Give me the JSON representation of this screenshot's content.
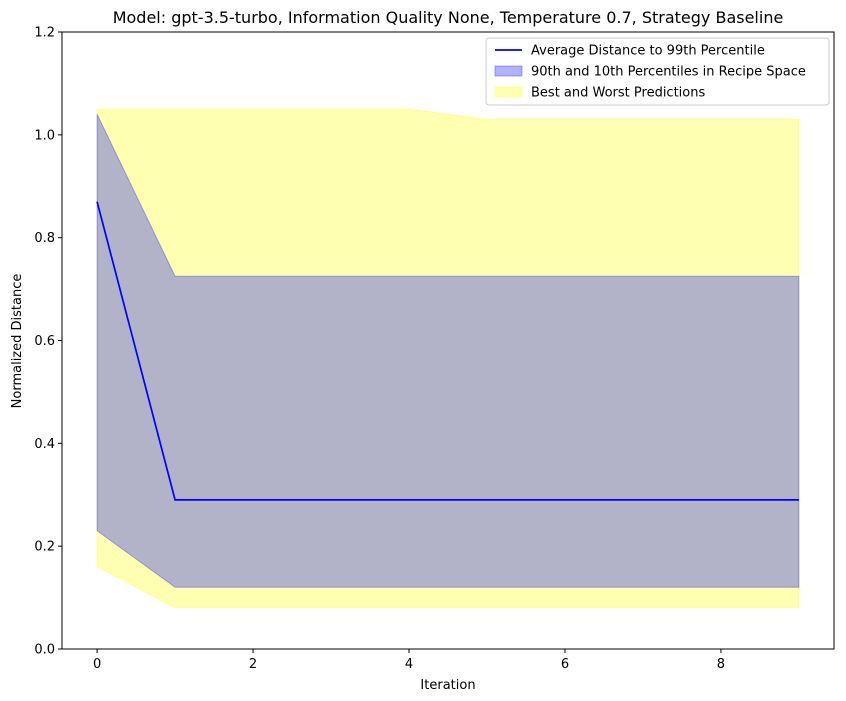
{
  "chart_data": {
    "type": "line",
    "title": "Model: gpt-3.5-turbo, Information Quality None, Temperature 0.7, Strategy Baseline",
    "xlabel": "Iteration",
    "ylabel": "Normalized Distance",
    "xlim": [
      -0.45,
      9.45
    ],
    "ylim": [
      0.0,
      1.2
    ],
    "xticks": [
      0,
      2,
      4,
      6,
      8
    ],
    "yticks": [
      0.0,
      0.2,
      0.4,
      0.6,
      0.8,
      1.0,
      1.2
    ],
    "legend_position": "top-right",
    "x": [
      0,
      1,
      2,
      3,
      4,
      5,
      6,
      7,
      8,
      9
    ],
    "series": [
      {
        "name": "Best and Worst Predictions",
        "kind": "band",
        "color": "#ffff00",
        "opacity": 0.3,
        "upper": [
          1.05,
          1.05,
          1.05,
          1.05,
          1.05,
          1.03,
          1.03,
          1.03,
          1.03,
          1.03
        ],
        "lower": [
          0.16,
          0.08,
          0.08,
          0.08,
          0.08,
          0.08,
          0.08,
          0.08,
          0.08,
          0.08
        ]
      },
      {
        "name": "90th and 10th Percentiles in Recipe Space",
        "kind": "band",
        "color": "#0000ff",
        "opacity": 0.3,
        "upper": [
          1.04,
          0.725,
          0.725,
          0.725,
          0.725,
          0.725,
          0.725,
          0.725,
          0.725,
          0.725
        ],
        "lower": [
          0.23,
          0.12,
          0.12,
          0.12,
          0.12,
          0.12,
          0.12,
          0.12,
          0.12,
          0.12
        ]
      },
      {
        "name": "Average Distance to 99th Percentile",
        "kind": "line",
        "color": "#0000ff",
        "values": [
          0.87,
          0.29,
          0.29,
          0.29,
          0.29,
          0.29,
          0.29,
          0.29,
          0.29,
          0.29
        ]
      }
    ],
    "legend_order": [
      "Average Distance to 99th Percentile",
      "90th and 10th Percentiles in Recipe Space",
      "Best and Worst Predictions"
    ]
  }
}
